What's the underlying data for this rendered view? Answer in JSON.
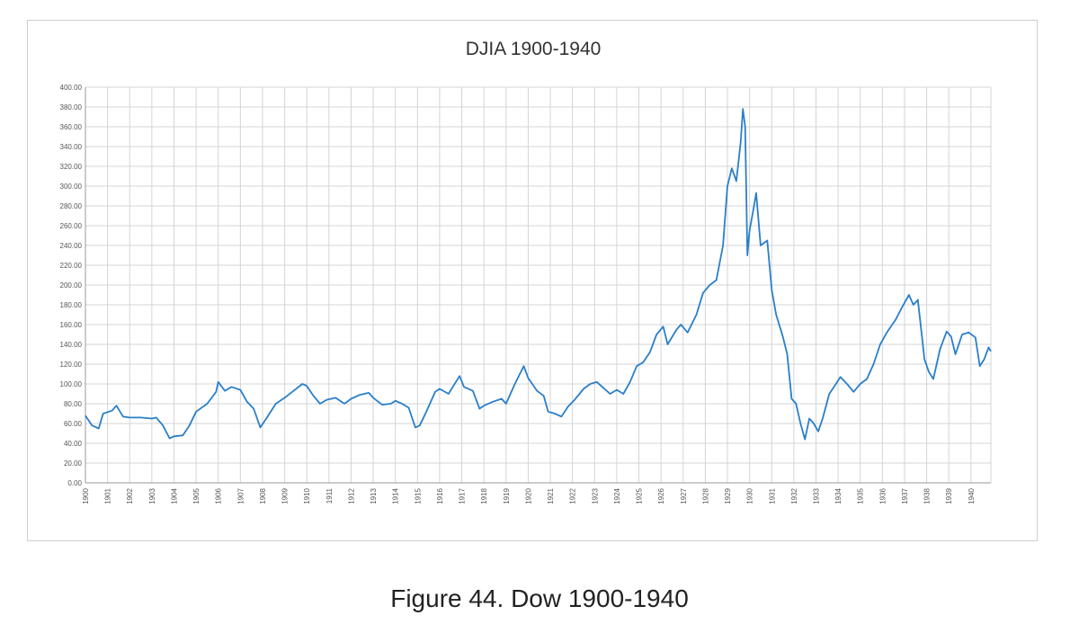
{
  "caption": "Figure 44. Dow 1900-1940",
  "colors": {
    "line": "#2a7fc9",
    "grid": "#d4d4d4",
    "axis": "#9a9a9a"
  },
  "chart_data": {
    "type": "line",
    "title": "DJIA 1900-1940",
    "xlabel": "",
    "ylabel": "",
    "ylim": [
      0,
      400
    ],
    "xlim": [
      1900,
      1940.9
    ],
    "grid": true,
    "legend": "none",
    "y_ticks": [
      "0.00",
      "20.00",
      "40.00",
      "60.00",
      "80.00",
      "100.00",
      "120.00",
      "140.00",
      "160.00",
      "180.00",
      "200.00",
      "220.00",
      "240.00",
      "260.00",
      "280.00",
      "300.00",
      "320.00",
      "340.00",
      "360.00",
      "380.00",
      "400.00"
    ],
    "x_ticks": [
      "1900",
      "1901",
      "1902",
      "1903",
      "1904",
      "1905",
      "1906",
      "1907",
      "1908",
      "1909",
      "1910",
      "1911",
      "1912",
      "1913",
      "1914",
      "1915",
      "1916",
      "1917",
      "1918",
      "1919",
      "1920",
      "1921",
      "1922",
      "1923",
      "1924",
      "1925",
      "1926",
      "1927",
      "1928",
      "1929",
      "1930",
      "1931",
      "1932",
      "1933",
      "1934",
      "1935",
      "1936",
      "1937",
      "1938",
      "1939",
      "1940"
    ],
    "series": [
      {
        "values": [
          [
            1900.0,
            68
          ],
          [
            1900.3,
            58
          ],
          [
            1900.6,
            55
          ],
          [
            1900.8,
            70
          ],
          [
            1901.2,
            73
          ],
          [
            1901.4,
            78
          ],
          [
            1901.7,
            67
          ],
          [
            1902.0,
            66
          ],
          [
            1902.5,
            66
          ],
          [
            1903.0,
            65
          ],
          [
            1903.2,
            66
          ],
          [
            1903.5,
            58
          ],
          [
            1903.8,
            45
          ],
          [
            1904.0,
            47
          ],
          [
            1904.4,
            48
          ],
          [
            1904.7,
            58
          ],
          [
            1905.0,
            72
          ],
          [
            1905.5,
            80
          ],
          [
            1905.9,
            92
          ],
          [
            1906.0,
            102
          ],
          [
            1906.3,
            93
          ],
          [
            1906.6,
            97
          ],
          [
            1907.0,
            94
          ],
          [
            1907.3,
            82
          ],
          [
            1907.6,
            75
          ],
          [
            1907.9,
            56
          ],
          [
            1908.2,
            66
          ],
          [
            1908.6,
            80
          ],
          [
            1909.0,
            86
          ],
          [
            1909.4,
            93
          ],
          [
            1909.8,
            100
          ],
          [
            1910.0,
            98
          ],
          [
            1910.3,
            88
          ],
          [
            1910.6,
            80
          ],
          [
            1910.9,
            84
          ],
          [
            1911.3,
            86
          ],
          [
            1911.7,
            80
          ],
          [
            1912.0,
            85
          ],
          [
            1912.4,
            89
          ],
          [
            1912.8,
            91
          ],
          [
            1913.0,
            86
          ],
          [
            1913.4,
            79
          ],
          [
            1913.8,
            80
          ],
          [
            1914.0,
            83
          ],
          [
            1914.3,
            80
          ],
          [
            1914.6,
            76
          ],
          [
            1914.9,
            56
          ],
          [
            1915.1,
            58
          ],
          [
            1915.4,
            72
          ],
          [
            1915.8,
            92
          ],
          [
            1916.0,
            95
          ],
          [
            1916.4,
            90
          ],
          [
            1916.9,
            108
          ],
          [
            1917.1,
            97
          ],
          [
            1917.5,
            93
          ],
          [
            1917.8,
            75
          ],
          [
            1918.0,
            78
          ],
          [
            1918.4,
            82
          ],
          [
            1918.8,
            85
          ],
          [
            1919.0,
            80
          ],
          [
            1919.4,
            100
          ],
          [
            1919.8,
            118
          ],
          [
            1920.0,
            106
          ],
          [
            1920.4,
            93
          ],
          [
            1920.7,
            88
          ],
          [
            1920.9,
            72
          ],
          [
            1921.2,
            70
          ],
          [
            1921.5,
            67
          ],
          [
            1921.8,
            77
          ],
          [
            1922.1,
            84
          ],
          [
            1922.5,
            95
          ],
          [
            1922.8,
            100
          ],
          [
            1923.1,
            102
          ],
          [
            1923.4,
            96
          ],
          [
            1923.7,
            90
          ],
          [
            1924.0,
            94
          ],
          [
            1924.3,
            90
          ],
          [
            1924.6,
            102
          ],
          [
            1924.9,
            118
          ],
          [
            1925.2,
            122
          ],
          [
            1925.5,
            132
          ],
          [
            1925.8,
            150
          ],
          [
            1926.1,
            158
          ],
          [
            1926.3,
            140
          ],
          [
            1926.7,
            155
          ],
          [
            1926.9,
            160
          ],
          [
            1927.2,
            152
          ],
          [
            1927.6,
            170
          ],
          [
            1927.9,
            192
          ],
          [
            1928.2,
            200
          ],
          [
            1928.5,
            205
          ],
          [
            1928.8,
            240
          ],
          [
            1929.0,
            300
          ],
          [
            1929.2,
            318
          ],
          [
            1929.4,
            305
          ],
          [
            1929.6,
            345
          ],
          [
            1929.7,
            378
          ],
          [
            1929.8,
            360
          ],
          [
            1929.9,
            230
          ],
          [
            1930.0,
            255
          ],
          [
            1930.2,
            280
          ],
          [
            1930.3,
            293
          ],
          [
            1930.5,
            240
          ],
          [
            1930.8,
            245
          ],
          [
            1931.0,
            195
          ],
          [
            1931.2,
            170
          ],
          [
            1931.5,
            148
          ],
          [
            1931.7,
            130
          ],
          [
            1931.9,
            85
          ],
          [
            1932.1,
            80
          ],
          [
            1932.3,
            60
          ],
          [
            1932.5,
            44
          ],
          [
            1932.7,
            65
          ],
          [
            1932.9,
            60
          ],
          [
            1933.1,
            52
          ],
          [
            1933.3,
            65
          ],
          [
            1933.6,
            90
          ],
          [
            1933.9,
            100
          ],
          [
            1934.1,
            107
          ],
          [
            1934.4,
            100
          ],
          [
            1934.7,
            92
          ],
          [
            1935.0,
            100
          ],
          [
            1935.3,
            105
          ],
          [
            1935.6,
            120
          ],
          [
            1935.9,
            140
          ],
          [
            1936.2,
            152
          ],
          [
            1936.6,
            165
          ],
          [
            1936.9,
            178
          ],
          [
            1937.2,
            190
          ],
          [
            1937.4,
            180
          ],
          [
            1937.6,
            185
          ],
          [
            1937.8,
            145
          ],
          [
            1937.9,
            125
          ],
          [
            1938.1,
            112
          ],
          [
            1938.3,
            105
          ],
          [
            1938.6,
            135
          ],
          [
            1938.9,
            153
          ],
          [
            1939.1,
            148
          ],
          [
            1939.3,
            130
          ],
          [
            1939.6,
            150
          ],
          [
            1939.9,
            152
          ],
          [
            1940.2,
            147
          ],
          [
            1940.4,
            118
          ],
          [
            1940.6,
            125
          ],
          [
            1940.8,
            137
          ],
          [
            1940.9,
            133
          ]
        ]
      }
    ]
  }
}
